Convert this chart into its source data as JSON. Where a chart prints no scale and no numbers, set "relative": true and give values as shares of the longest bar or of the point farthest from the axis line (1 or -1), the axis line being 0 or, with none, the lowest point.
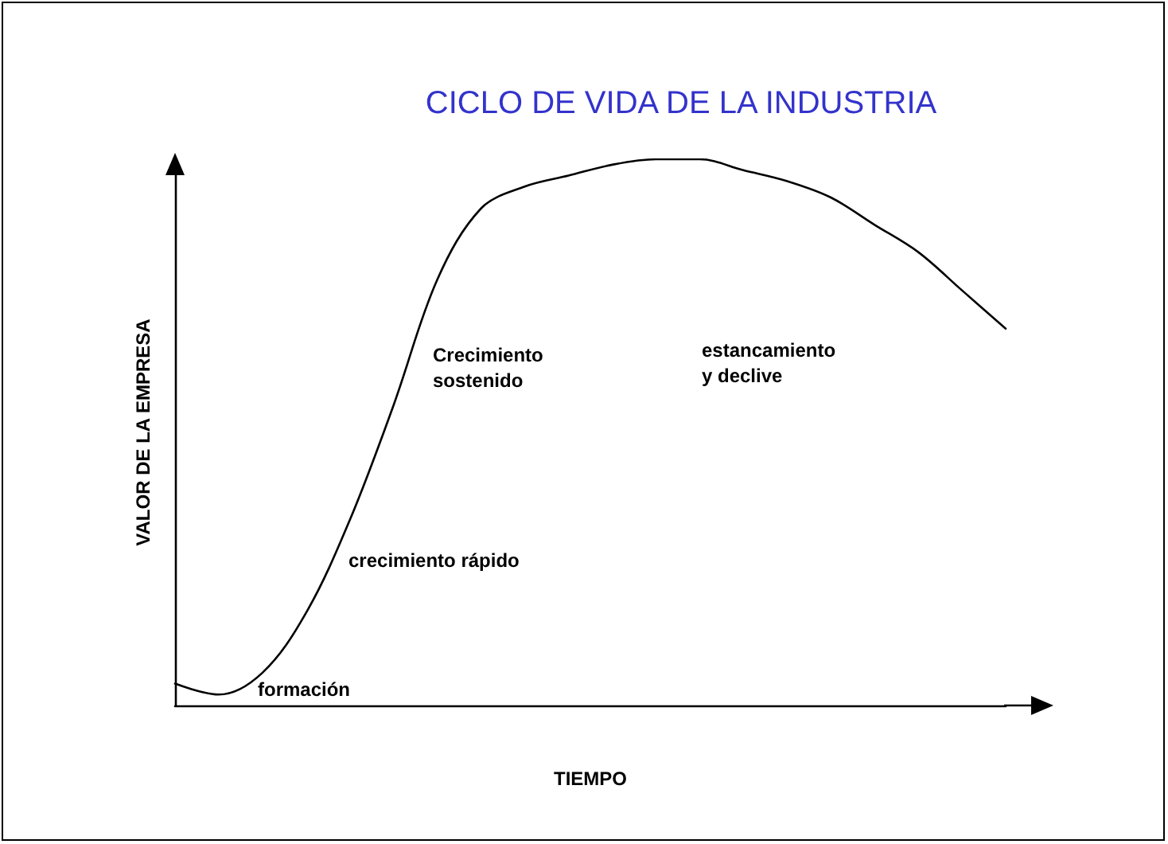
{
  "chart_data": {
    "type": "line",
    "title": "CICLO DE VIDA DE LA INDUSTRIA",
    "xlabel": "TIEMPO",
    "ylabel": "VALOR DE LA EMPRESA",
    "relative": true,
    "categories": [
      null,
      null,
      null,
      null,
      null,
      null,
      null,
      null,
      null,
      null,
      null,
      null,
      null,
      null,
      null,
      null,
      null,
      null,
      null,
      null
    ],
    "series": [
      {
        "color": "#000000",
        "values": [
          0.04,
          0.02,
          0.06,
          0.17,
          0.34,
          0.55,
          0.78,
          0.91,
          0.95,
          0.97,
          0.99,
          1.0,
          1.0,
          0.98,
          0.96,
          0.93,
          0.88,
          0.83,
          0.76,
          0.69
        ]
      }
    ],
    "annotations": [
      "Crecimiento\nsostenido",
      "estancamiento\ny declive",
      "crecimiento rápido",
      "formación"
    ],
    "grid": false,
    "marker": "none",
    "line_style": "solid"
  }
}
